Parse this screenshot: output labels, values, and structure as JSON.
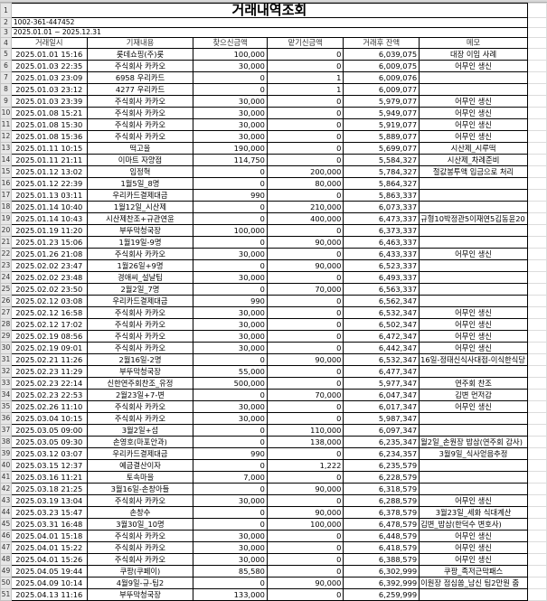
{
  "title": "거래내역조회",
  "account": "1002-361-447452",
  "period": "2025.01.01 ~ 2025.12.31",
  "headers": [
    "거래일시",
    "기재내용",
    "찾으신금액",
    "맡기신금액",
    "거래후 잔액",
    "메모"
  ],
  "rows": [
    [
      "2025.01.01 15:16",
      "롯데쇼핑(주)롯",
      "100,000",
      "0",
      "6,039,075",
      "대장 이임 사례"
    ],
    [
      "2025.01.03 22:35",
      "주식회사 카카오",
      "30,000",
      "0",
      "6,009,075",
      "어무인 생신"
    ],
    [
      "2025.01.03 23:09",
      "6958 우리카드",
      "0",
      "1",
      "6,009,076",
      ""
    ],
    [
      "2025.01.03 23:12",
      "4277 우리카드",
      "0",
      "1",
      "6,009,077",
      ""
    ],
    [
      "2025.01.03 23:39",
      "주식회사 카카오",
      "30,000",
      "0",
      "5,979,077",
      "어무인 생신"
    ],
    [
      "2025.01.08 15:21",
      "주식회사 카카오",
      "30,000",
      "0",
      "5,949,077",
      "어무인 생신"
    ],
    [
      "2025.01.08 15:30",
      "주식회사 카카오",
      "30,000",
      "0",
      "5,919,077",
      "어무인 생신"
    ],
    [
      "2025.01.08 15:36",
      "주식회사 카카오",
      "30,000",
      "0",
      "5,889,077",
      "어무인 생신"
    ],
    [
      "2025.01.11 10:15",
      "떡고을",
      "190,000",
      "0",
      "5,699,077",
      "시산제_시루떡"
    ],
    [
      "2025.01.11 21:11",
      "이마트 자양점",
      "114,750",
      "0",
      "5,584,327",
      "시산제_차례준비"
    ],
    [
      "2025.01.12 13:02",
      "임정혁",
      "0",
      "200,000",
      "5,784,327",
      "절값봉투액 입금으로 처리"
    ],
    [
      "2025.01.12 22:39",
      "1월5일_8명",
      "0",
      "80,000",
      "5,864,327",
      ""
    ],
    [
      "2025.01.13 03:11",
      "우리카드결제대금",
      "990",
      "0",
      "5,863,337",
      ""
    ],
    [
      "2025.01.14 10:40",
      "1월12일_시산제",
      "0",
      "210,000",
      "6,073,337",
      ""
    ],
    [
      "2025.01.14 10:43",
      "시산제찬조+규관연윤",
      "0",
      "400,000",
      "6,473,337",
      "규형10박정관5이재연5김동윤20"
    ],
    [
      "2025.01.19 11:20",
      "부뚜막청국장",
      "100,000",
      "0",
      "6,373,337",
      ""
    ],
    [
      "2025.01.23 15:06",
      "1월19일-9명",
      "0",
      "90,000",
      "6,463,337",
      ""
    ],
    [
      "2025.01.26 21:08",
      "주식회사 카카오",
      "30,000",
      "0",
      "6,433,337",
      "어무인 생신"
    ],
    [
      "2025.02.02 23:47",
      "1월26일+9명",
      "0",
      "90,000",
      "6,523,337",
      ""
    ],
    [
      "2025.02.02 23:48",
      "경애씨_설날팁",
      "30,000",
      "0",
      "6,493,337",
      ""
    ],
    [
      "2025.02.02 23:50",
      "2월2일_7명",
      "0",
      "70,000",
      "6,563,337",
      ""
    ],
    [
      "2025.02.12 03:08",
      "우리카드결제대금",
      "990",
      "0",
      "6,562,347",
      ""
    ],
    [
      "2025.02.12 16:58",
      "주식회사 카카오",
      "30,000",
      "0",
      "6,532,347",
      "어무인 생신"
    ],
    [
      "2025.02.12 17:02",
      "주식회사 카카오",
      "30,000",
      "0",
      "6,502,347",
      "어무인 생신"
    ],
    [
      "2025.02.19 08:56",
      "주식회사 카카오",
      "30,000",
      "0",
      "6,472,347",
      "어무인 생신"
    ],
    [
      "2025.02.19 09:01",
      "주식회사 카카오",
      "30,000",
      "0",
      "6,442,347",
      "어무인 생신"
    ],
    [
      "2025.02.21 11:26",
      "2월16일-2명",
      "0",
      "90,000",
      "6,532,347",
      "16일-정태신식사대접-이식한식당"
    ],
    [
      "2025.02.23 11:29",
      "부뚜막청국장",
      "55,000",
      "0",
      "6,477,347",
      ""
    ],
    [
      "2025.02.23 22:14",
      "신한연주회찬조_유정",
      "500,000",
      "0",
      "5,977,347",
      "연주회 찬조"
    ],
    [
      "2025.02.23 22:53",
      "2월23일+7-변",
      "0",
      "70,000",
      "6,047,347",
      "김변 먼저감"
    ],
    [
      "2025.02.26 11:10",
      "주식회사 카카오",
      "30,000",
      "0",
      "6,017,347",
      "어무인 생신"
    ],
    [
      "2025.03.04 10:15",
      "주식회사 카카오",
      "30,000",
      "0",
      "5,987,347",
      ""
    ],
    [
      "2025.03.05 09:00",
      "3월2일+섬",
      "0",
      "110,000",
      "6,097,347",
      ""
    ],
    [
      "2025.03.05 09:30",
      "손영호(마포안과)",
      "0",
      "138,000",
      "6,235,347",
      "월2일_손원장 밥삼(연주회 감사)"
    ],
    [
      "2025.03.12 03:07",
      "우리카드결제대금",
      "990",
      "0",
      "6,234,357",
      "3월9일_식사얻음추정"
    ],
    [
      "2025.03.15 12:37",
      "예금결산이자",
      "0",
      "1,222",
      "6,235,579",
      ""
    ],
    [
      "2025.03.16 11:21",
      "토속마을",
      "7,000",
      "0",
      "6,228,579",
      ""
    ],
    [
      "2025.03.18 21:25",
      "3월16일-손창아들",
      "0",
      "90,000",
      "6,318,579",
      ""
    ],
    [
      "2025.03.19 13:04",
      "주식회사 카카오",
      "30,000",
      "0",
      "6,288,579",
      "어무인 생신"
    ],
    [
      "2025.03.23 15:47",
      "손창수",
      "0",
      "90,000",
      "6,378,579",
      "3월23일_세화 식대계산"
    ],
    [
      "2025.03.31 16:48",
      "3월30일_10명",
      "0",
      "100,000",
      "6,478,579",
      "김변_밥삼(한덕수 변호사)"
    ],
    [
      "2025.04.01 15:18",
      "주식회사 카카오",
      "30,000",
      "0",
      "6,448,579",
      "어무인 생신"
    ],
    [
      "2025.04.01 15:22",
      "주식회사 카카오",
      "30,000",
      "0",
      "6,418,579",
      "어무인 생신"
    ],
    [
      "2025.04.01 15:26",
      "주식회사 카카오",
      "30,000",
      "0",
      "6,388,579",
      "어무인 생신"
    ],
    [
      "2025.04.05 19:44",
      "쿠팡(쿠페이)",
      "85,580",
      "0",
      "6,302,999",
      "쿠팡_족저근막패스"
    ],
    [
      "2025.04.09 10:14",
      "4월9일-규-팀2",
      "0",
      "90,000",
      "6,392,999",
      "이원장 점심쏨_남신 팀2만원 줌"
    ],
    [
      "2025.04.13 11:16",
      "부뚜막청국장",
      "133,000",
      "0",
      "6,259,999",
      ""
    ]
  ]
}
